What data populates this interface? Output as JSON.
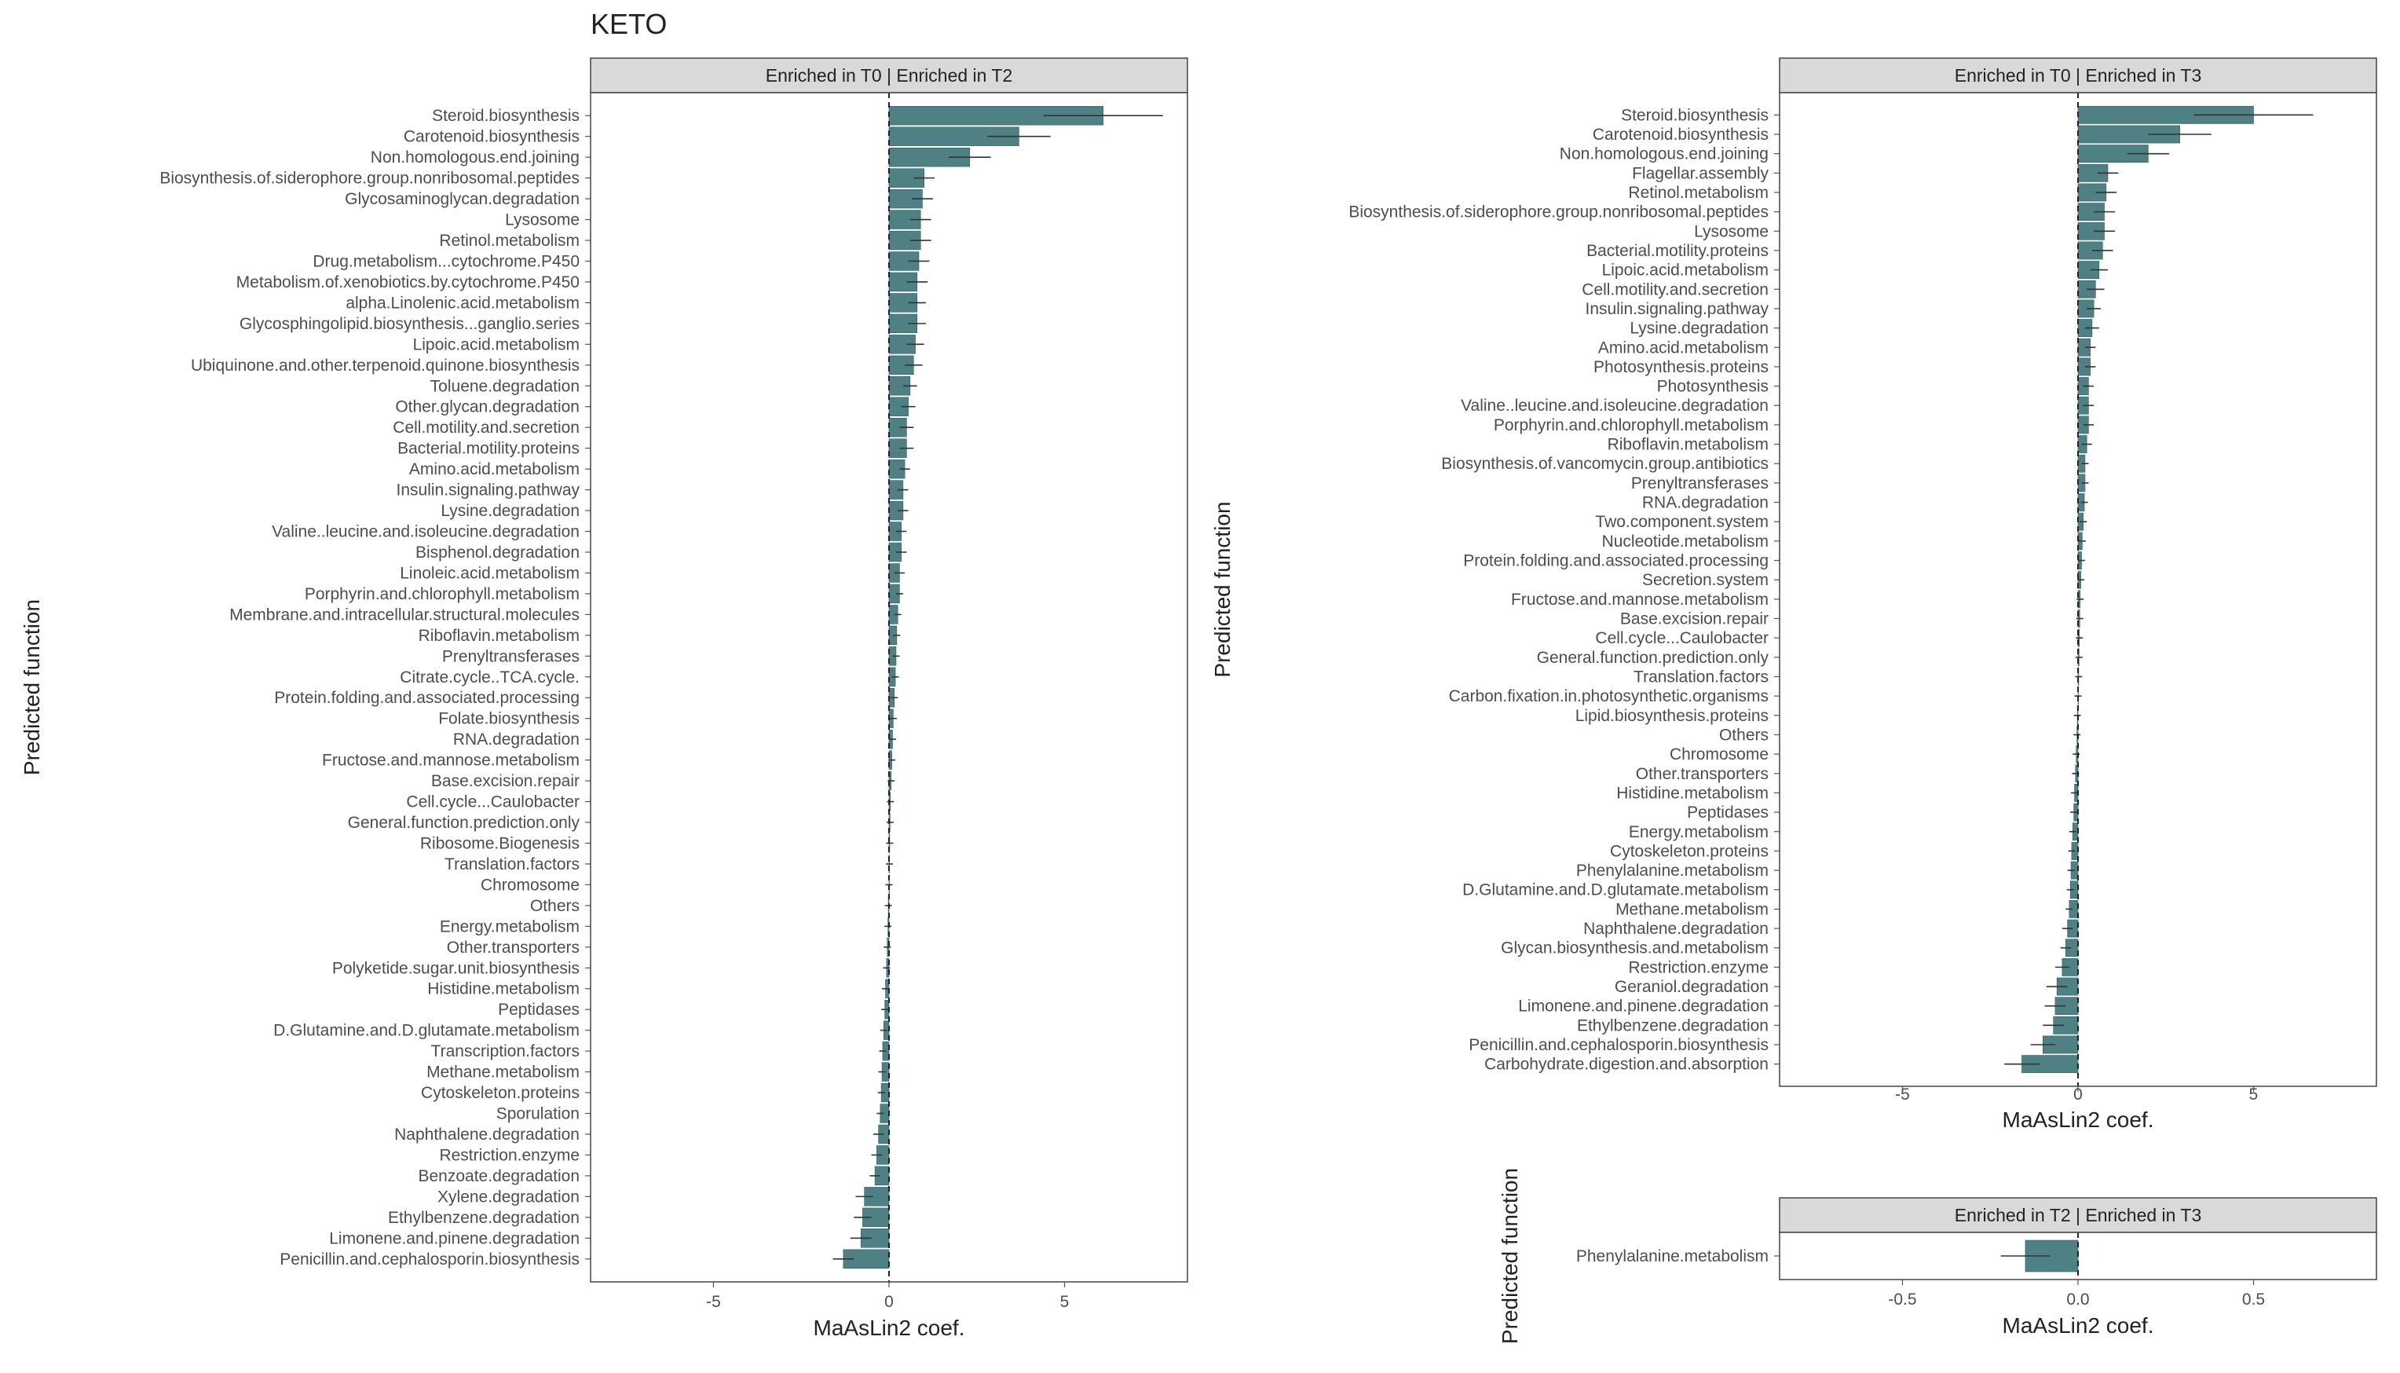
{
  "figure_title": "KETO",
  "colors": {
    "bar": "#4f8184",
    "bar_stroke": "#2f5d60",
    "strip": "#d9d9d9",
    "panel_border": "#444444",
    "zero_line": "#222222"
  },
  "chart_data": [
    {
      "type": "bar",
      "orientation": "horizontal",
      "strip_label": "Enriched in T0 | Enriched in T2",
      "xlabel": "MaAsLin2 coef.",
      "ylabel": "Predicted function",
      "xlim": [
        -8.5,
        8.5
      ],
      "xticks": [
        -5,
        0,
        5
      ],
      "tick_labels": [
        "-5",
        "0",
        "5"
      ],
      "categories": [
        "Steroid.biosynthesis",
        "Carotenoid.biosynthesis",
        "Non.homologous.end.joining",
        "Biosynthesis.of.siderophore.group.nonribosomal.peptides",
        "Glycosaminoglycan.degradation",
        "Lysosome",
        "Retinol.metabolism",
        "Drug.metabolism...cytochrome.P450",
        "Metabolism.of.xenobiotics.by.cytochrome.P450",
        "alpha.Linolenic.acid.metabolism",
        "Glycosphingolipid.biosynthesis...ganglio.series",
        "Lipoic.acid.metabolism",
        "Ubiquinone.and.other.terpenoid.quinone.biosynthesis",
        "Toluene.degradation",
        "Other.glycan.degradation",
        "Cell.motility.and.secretion",
        "Bacterial.motility.proteins",
        "Amino.acid.metabolism",
        "Insulin.signaling.pathway",
        "Lysine.degradation",
        "Valine..leucine.and.isoleucine.degradation",
        "Bisphenol.degradation",
        "Linoleic.acid.metabolism",
        "Porphyrin.and.chlorophyll.metabolism",
        "Membrane.and.intracellular.structural.molecules",
        "Riboflavin.metabolism",
        "Prenyltransferases",
        "Citrate.cycle..TCA.cycle.",
        "Protein.folding.and.associated.processing",
        "Folate.biosynthesis",
        "RNA.degradation",
        "Fructose.and.mannose.metabolism",
        "Base.excision.repair",
        "Cell.cycle...Caulobacter",
        "General.function.prediction.only",
        "Ribosome.Biogenesis",
        "Translation.factors",
        "Chromosome",
        "Others",
        "Energy.metabolism",
        "Other.transporters",
        "Polyketide.sugar.unit.biosynthesis",
        "Histidine.metabolism",
        "Peptidases",
        "D.Glutamine.and.D.glutamate.metabolism",
        "Transcription.factors",
        "Methane.metabolism",
        "Cytoskeleton.proteins",
        "Sporulation",
        "Naphthalene.degradation",
        "Restriction.enzyme",
        "Benzoate.degradation",
        "Xylene.degradation",
        "Ethylbenzene.degradation",
        "Limonene.and.pinene.degradation",
        "Penicillin.and.cephalosporin.biosynthesis"
      ],
      "values": [
        6.1,
        3.7,
        2.3,
        1.0,
        0.95,
        0.9,
        0.9,
        0.85,
        0.8,
        0.8,
        0.8,
        0.75,
        0.7,
        0.6,
        0.55,
        0.5,
        0.5,
        0.45,
        0.4,
        0.4,
        0.35,
        0.35,
        0.3,
        0.3,
        0.25,
        0.22,
        0.2,
        0.18,
        0.15,
        0.12,
        0.1,
        0.08,
        0.06,
        0.04,
        0.03,
        0.02,
        0.01,
        0.0,
        -0.02,
        -0.03,
        -0.05,
        -0.07,
        -0.1,
        -0.12,
        -0.15,
        -0.18,
        -0.2,
        -0.22,
        -0.25,
        -0.3,
        -0.35,
        -0.4,
        -0.7,
        -0.75,
        -0.8,
        -1.3
      ],
      "errors": [
        1.7,
        0.9,
        0.6,
        0.3,
        0.3,
        0.3,
        0.3,
        0.3,
        0.3,
        0.25,
        0.25,
        0.25,
        0.25,
        0.2,
        0.2,
        0.2,
        0.2,
        0.15,
        0.15,
        0.15,
        0.15,
        0.15,
        0.15,
        0.1,
        0.1,
        0.1,
        0.1,
        0.1,
        0.1,
        0.1,
        0.1,
        0.1,
        0.1,
        0.1,
        0.1,
        0.1,
        0.1,
        0.1,
        0.1,
        0.1,
        0.1,
        0.1,
        0.1,
        0.1,
        0.1,
        0.1,
        0.1,
        0.1,
        0.1,
        0.15,
        0.15,
        0.15,
        0.25,
        0.25,
        0.3,
        0.3
      ]
    },
    {
      "type": "bar",
      "orientation": "horizontal",
      "strip_label": "Enriched in T0 | Enriched in T3",
      "xlabel": "MaAsLin2 coef.",
      "ylabel": "Predicted function",
      "xlim": [
        -8.5,
        8.5
      ],
      "xticks": [
        -5,
        0,
        5
      ],
      "tick_labels": [
        "-5",
        "0",
        "5"
      ],
      "categories": [
        "Steroid.biosynthesis",
        "Carotenoid.biosynthesis",
        "Non.homologous.end.joining",
        "Flagellar.assembly",
        "Retinol.metabolism",
        "Biosynthesis.of.siderophore.group.nonribosomal.peptides",
        "Lysosome",
        "Bacterial.motility.proteins",
        "Lipoic.acid.metabolism",
        "Cell.motility.and.secretion",
        "Insulin.signaling.pathway",
        "Lysine.degradation",
        "Amino.acid.metabolism",
        "Photosynthesis.proteins",
        "Photosynthesis",
        "Valine..leucine.and.isoleucine.degradation",
        "Porphyrin.and.chlorophyll.metabolism",
        "Riboflavin.metabolism",
        "Biosynthesis.of.vancomycin.group.antibiotics",
        "Prenyltransferases",
        "RNA.degradation",
        "Two.component.system",
        "Nucleotide.metabolism",
        "Protein.folding.and.associated.processing",
        "Secretion.system",
        "Fructose.and.mannose.metabolism",
        "Base.excision.repair",
        "Cell.cycle...Caulobacter",
        "General.function.prediction.only",
        "Translation.factors",
        "Carbon.fixation.in.photosynthetic.organisms",
        "Lipid.biosynthesis.proteins",
        "Others",
        "Chromosome",
        "Other.transporters",
        "Histidine.metabolism",
        "Peptidases",
        "Energy.metabolism",
        "Cytoskeleton.proteins",
        "Phenylalanine.metabolism",
        "D.Glutamine.and.D.glutamate.metabolism",
        "Methane.metabolism",
        "Naphthalene.degradation",
        "Glycan.biosynthesis.and.metabolism",
        "Restriction.enzyme",
        "Geraniol.degradation",
        "Limonene.and.pinene.degradation",
        "Ethylbenzene.degradation",
        "Penicillin.and.cephalosporin.biosynthesis",
        "Carbohydrate.digestion.and.absorption"
      ],
      "values": [
        5.0,
        2.9,
        2.0,
        0.85,
        0.8,
        0.75,
        0.75,
        0.7,
        0.6,
        0.5,
        0.45,
        0.4,
        0.35,
        0.35,
        0.3,
        0.3,
        0.3,
        0.25,
        0.2,
        0.2,
        0.18,
        0.15,
        0.12,
        0.1,
        0.08,
        0.06,
        0.05,
        0.04,
        0.03,
        0.02,
        0.0,
        -0.02,
        -0.03,
        -0.05,
        -0.07,
        -0.1,
        -0.12,
        -0.15,
        -0.18,
        -0.2,
        -0.22,
        -0.25,
        -0.3,
        -0.35,
        -0.45,
        -0.6,
        -0.65,
        -0.7,
        -1.0,
        -1.6
      ],
      "errors": [
        1.7,
        0.9,
        0.6,
        0.3,
        0.3,
        0.3,
        0.3,
        0.3,
        0.25,
        0.25,
        0.2,
        0.2,
        0.15,
        0.15,
        0.15,
        0.15,
        0.15,
        0.15,
        0.1,
        0.1,
        0.1,
        0.1,
        0.1,
        0.1,
        0.1,
        0.1,
        0.1,
        0.1,
        0.1,
        0.1,
        0.1,
        0.1,
        0.1,
        0.1,
        0.1,
        0.1,
        0.1,
        0.1,
        0.1,
        0.1,
        0.1,
        0.1,
        0.15,
        0.15,
        0.2,
        0.3,
        0.3,
        0.3,
        0.35,
        0.5
      ]
    },
    {
      "type": "bar",
      "orientation": "horizontal",
      "strip_label": "Enriched in T2 | Enriched in T3",
      "xlabel": "MaAsLin2 coef.",
      "ylabel": "Predicted function",
      "xlim": [
        -0.85,
        0.85
      ],
      "xticks": [
        -0.5,
        0.0,
        0.5
      ],
      "tick_labels": [
        "-0.5",
        "0.0",
        "0.5"
      ],
      "categories": [
        "Phenylalanine.metabolism"
      ],
      "values": [
        -0.15
      ],
      "errors": [
        0.07
      ]
    }
  ]
}
